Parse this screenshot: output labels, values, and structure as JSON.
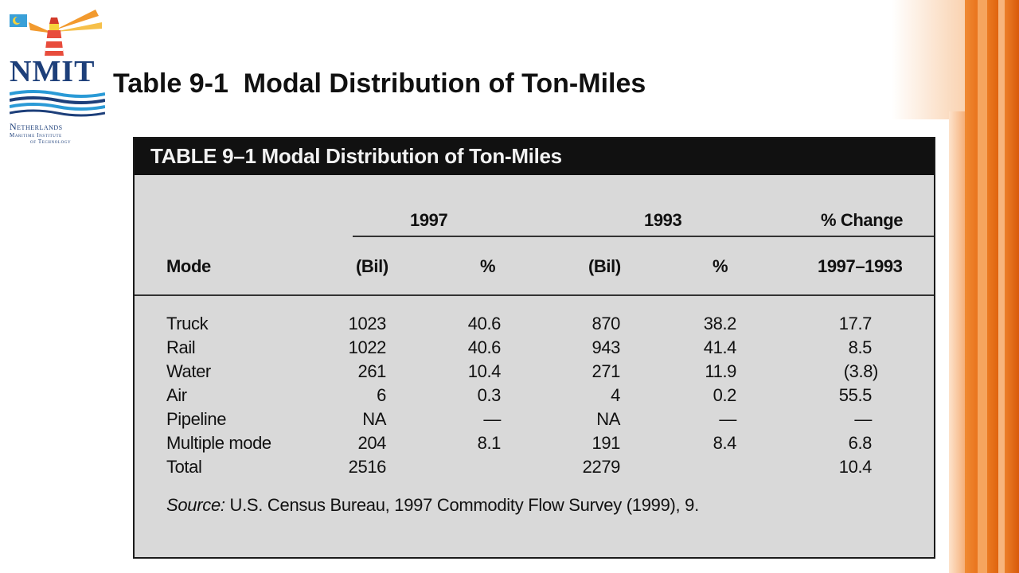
{
  "slide": {
    "title": "Table 9-1  Modal Distribution of Ton-Miles"
  },
  "logo": {
    "word": "NMIT",
    "sub1": "Netherlands",
    "sub2": "Maritime Institute",
    "sub3": "of Technology"
  },
  "table": {
    "header": "TABLE 9–1 Modal Distribution of Ton-Miles",
    "groups": {
      "y1997": "1997",
      "y1993": "1993",
      "change": "% Change"
    },
    "columns": {
      "mode": "Mode",
      "bil1997": "(Bil)",
      "pct1997": "%",
      "bil1993": "(Bil)",
      "pct1993": "%",
      "change": "1997–1993"
    },
    "rows": [
      {
        "mode": "Truck",
        "bil1997": "1023",
        "pct1997": "40.6",
        "bil1993": "870",
        "pct1993": "38.2",
        "change": "17.7"
      },
      {
        "mode": "Rail",
        "bil1997": "1022",
        "pct1997": "40.6",
        "bil1993": "943",
        "pct1993": "41.4",
        "change": "8.5"
      },
      {
        "mode": "Water",
        "bil1997": "261",
        "pct1997": "10.4",
        "bil1993": "271",
        "pct1993": "11.9",
        "change": "(3.8)"
      },
      {
        "mode": "Air",
        "bil1997": "6",
        "pct1997": "0.3",
        "bil1993": "4",
        "pct1993": "0.2",
        "change": "55.5"
      },
      {
        "mode": "Pipeline",
        "bil1997": "NA",
        "pct1997": "—",
        "bil1993": "NA",
        "pct1993": "—",
        "change": "—"
      },
      {
        "mode": "Multiple mode",
        "bil1997": "204",
        "pct1997": "8.1",
        "bil1993": "191",
        "pct1993": "8.4",
        "change": "6.8"
      },
      {
        "mode": "Total",
        "bil1997": "2516",
        "pct1997": "",
        "bil1993": "2279",
        "pct1993": "",
        "change": "10.4"
      }
    ],
    "source_label": "Source:",
    "source_text": " U.S. Census Bureau, 1997 Commodity Flow Survey (1999), 9."
  },
  "colors": {
    "logo_navy": "#1d3f7a",
    "accent_orange": "#e9741d",
    "table_gray": "#d9d9d9",
    "table_header": "#111111"
  }
}
